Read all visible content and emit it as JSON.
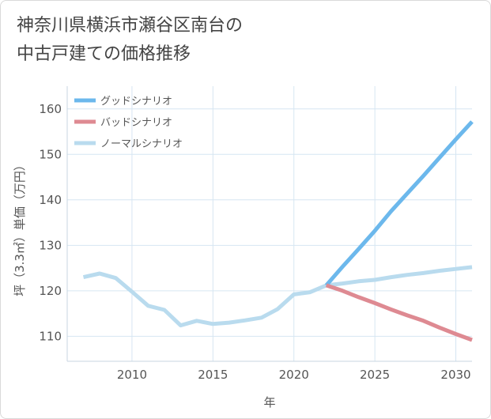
{
  "title_lines": [
    "神奈川県横浜市瀬谷区南台の",
    "中古戸建ての価格推移"
  ],
  "chart_data": {
    "type": "line",
    "xlabel": "年",
    "ylabel": "坪（3.3㎡）単価（万円）",
    "xlim": [
      2006,
      2031
    ],
    "ylim": [
      104.5,
      165
    ],
    "xticks": [
      2010,
      2015,
      2020,
      2025,
      2030
    ],
    "yticks": [
      110,
      120,
      130,
      140,
      150,
      160
    ],
    "grid": true,
    "legend_position": "top-left",
    "series": [
      {
        "name": "グッドシナリオ",
        "color": "#6cb8ec",
        "x": [
          2022,
          2023,
          2024,
          2025,
          2026,
          2027,
          2028,
          2029,
          2030,
          2031
        ],
        "values": [
          121.2,
          125.3,
          129.2,
          133.2,
          137.5,
          141.4,
          145.3,
          149.3,
          153.3,
          157.2
        ]
      },
      {
        "name": "バッドシナリオ",
        "color": "#de8a92",
        "x": [
          2022,
          2023,
          2024,
          2025,
          2026,
          2027,
          2028,
          2029,
          2030,
          2031
        ],
        "values": [
          121.2,
          120.0,
          118.6,
          117.3,
          115.9,
          114.6,
          113.4,
          111.9,
          110.5,
          109.2
        ]
      },
      {
        "name": "ノーマルシナリオ",
        "color": "#b9dbee",
        "x": [
          2007,
          2008,
          2009,
          2010,
          2011,
          2012,
          2013,
          2014,
          2015,
          2016,
          2017,
          2018,
          2019,
          2020,
          2021,
          2022,
          2023,
          2024,
          2025,
          2026,
          2027,
          2028,
          2029,
          2030,
          2031
        ],
        "values": [
          123.0,
          123.8,
          122.8,
          119.8,
          116.7,
          115.8,
          112.4,
          113.4,
          112.7,
          113.0,
          113.5,
          114.1,
          116.0,
          119.2,
          119.7,
          121.2,
          121.6,
          122.1,
          122.4,
          123.0,
          123.5,
          123.9,
          124.4,
          124.8,
          125.2
        ]
      }
    ]
  }
}
